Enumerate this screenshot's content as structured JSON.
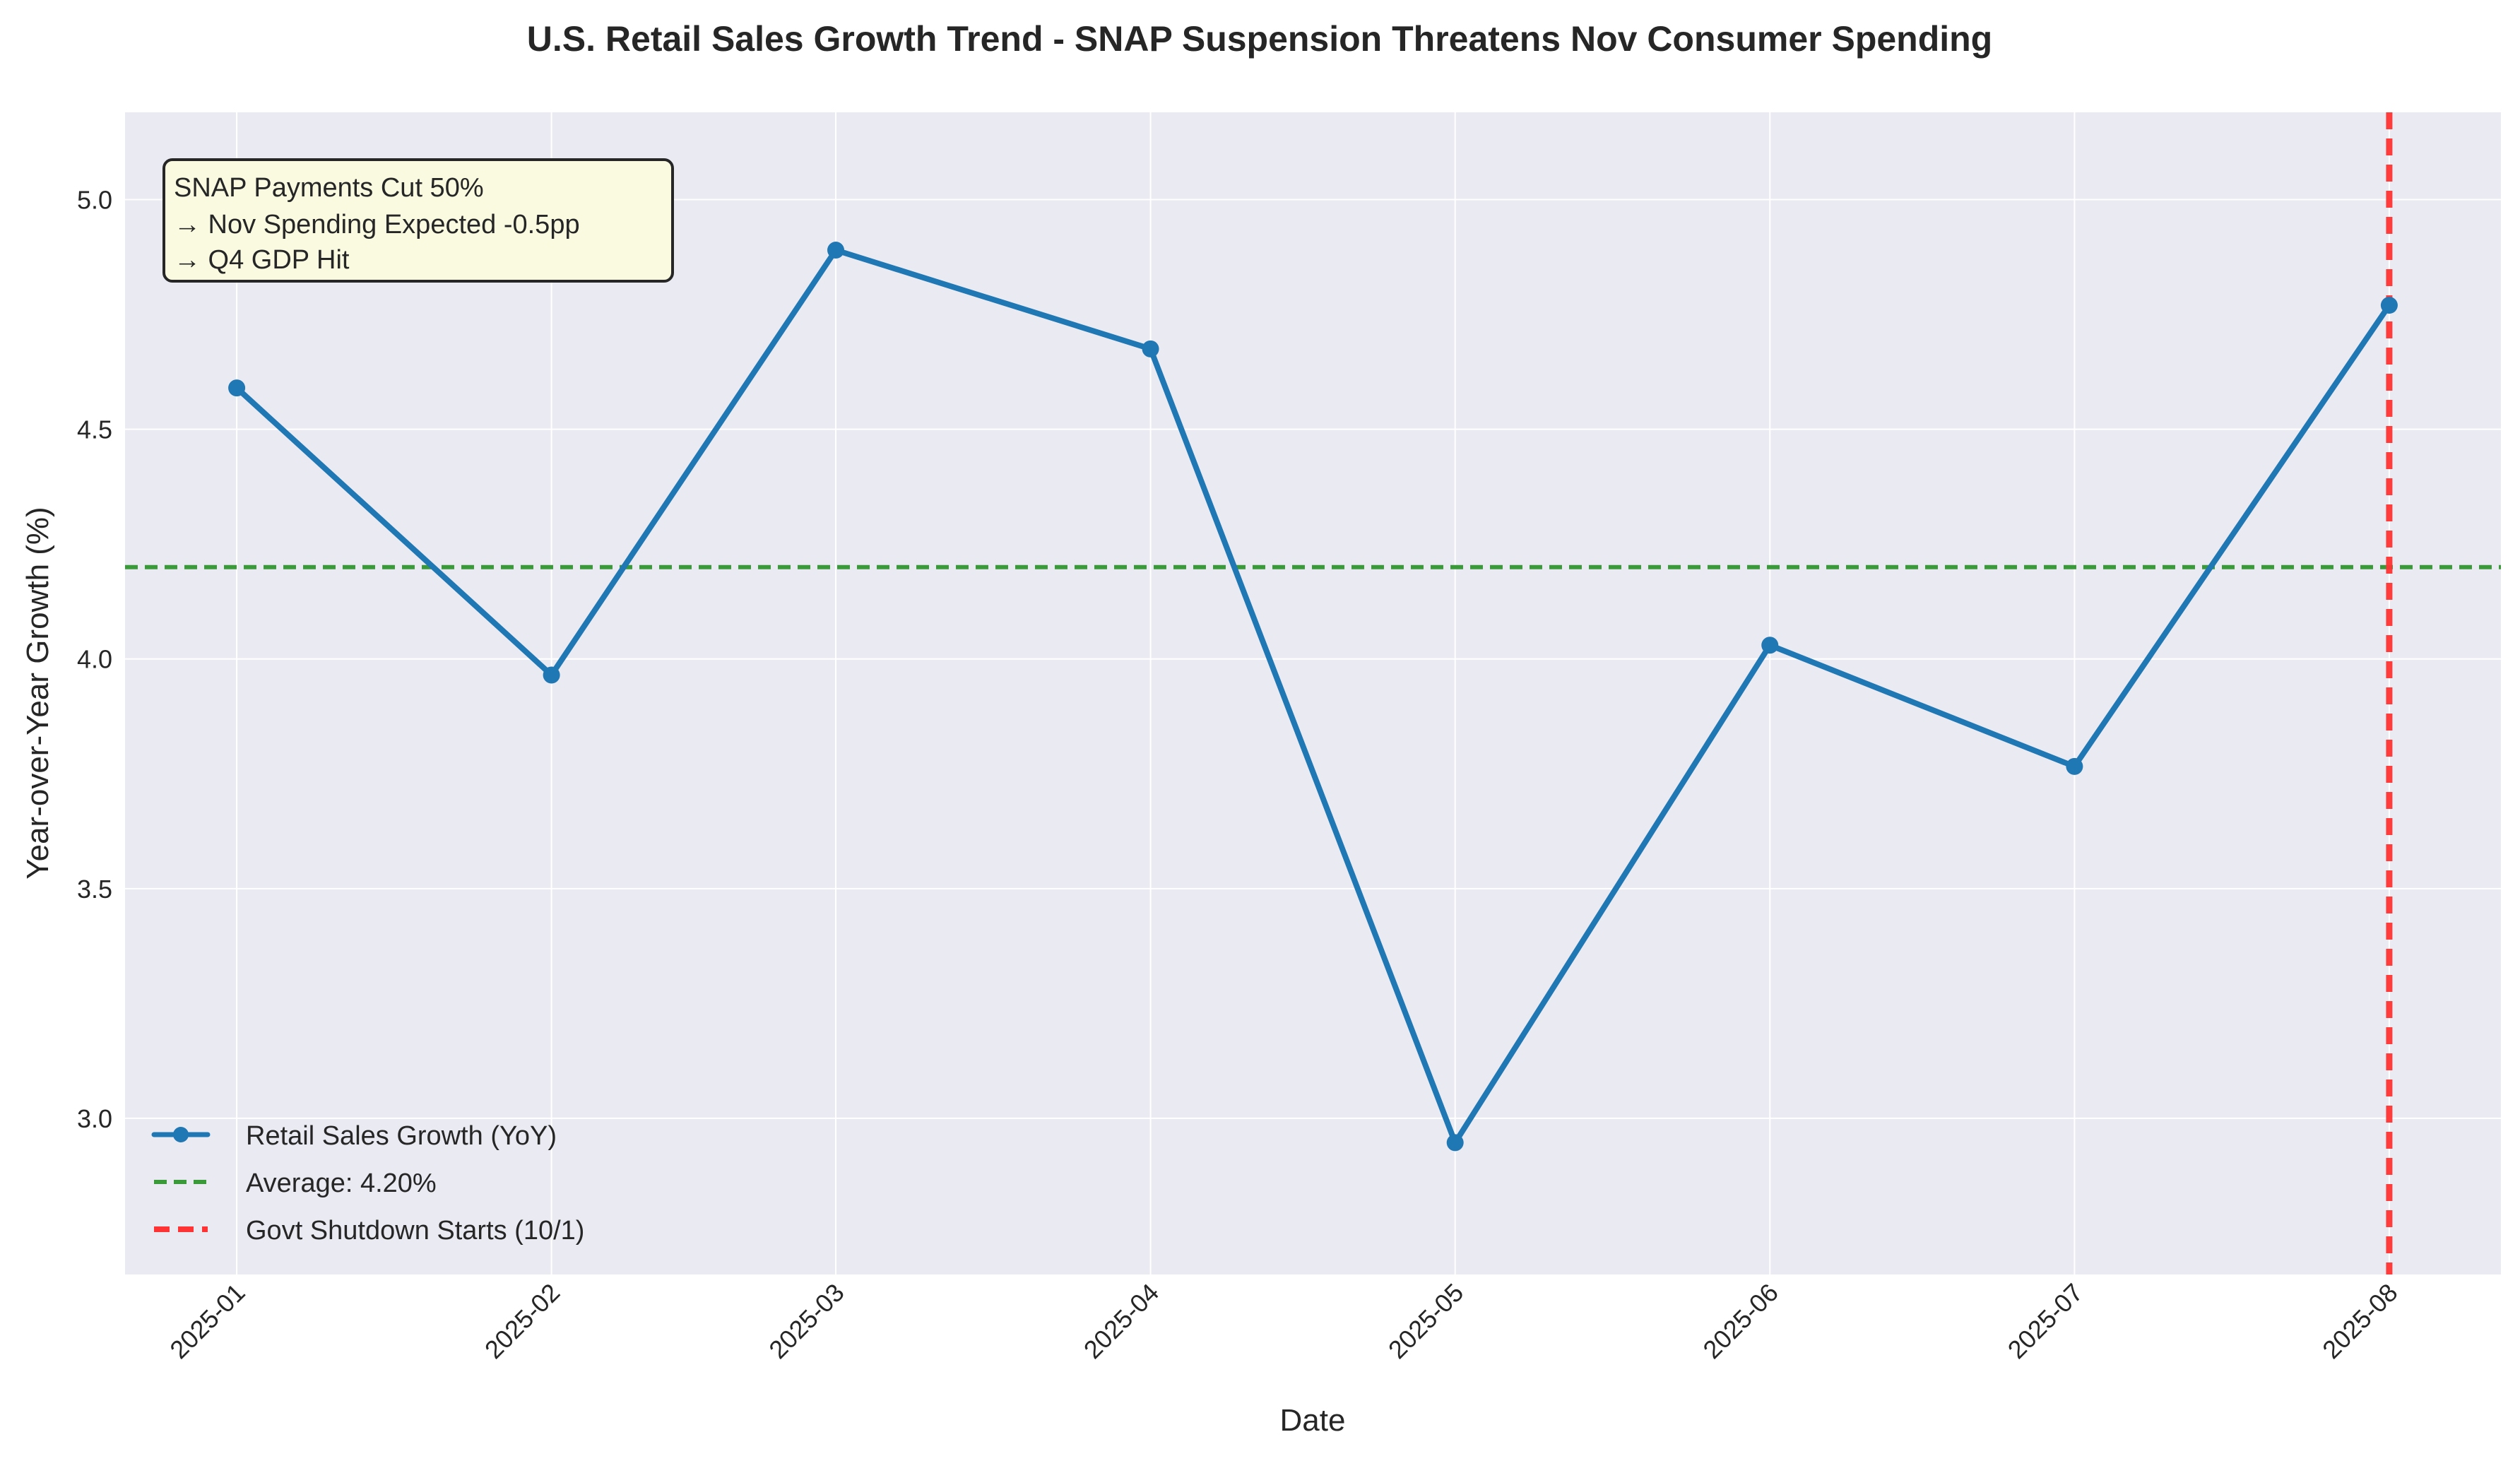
{
  "chart_data": {
    "type": "line",
    "title": "U.S. Retail Sales Growth Trend - SNAP Suspension Threatens Nov Consumer Spending",
    "xlabel": "Date",
    "ylabel": "Year-over-Year Growth (%)",
    "x": [
      "2025-01-01",
      "2025-02-01",
      "2025-03-01",
      "2025-04-01",
      "2025-05-01",
      "2025-06-01",
      "2025-07-01",
      "2025-08-01"
    ],
    "xticks": [
      "2025-01",
      "2025-02",
      "2025-03",
      "2025-04",
      "2025-05",
      "2025-06",
      "2025-07",
      "2025-08"
    ],
    "yticks": [
      "3.0",
      "3.5",
      "4.0",
      "4.5",
      "5.0"
    ],
    "ylim": [
      2.66,
      5.19
    ],
    "xlim": [
      "2024-12-21",
      "2025-08-12"
    ],
    "grid": true,
    "legend_placement": "lower-left",
    "series": [
      {
        "name": "Retail Sales Growth (YoY)",
        "color": "#1f77b4",
        "marker": "circle",
        "values": [
          4.59,
          3.965,
          4.89,
          4.675,
          2.947,
          4.03,
          3.766,
          4.77
        ]
      }
    ],
    "reference_lines": [
      {
        "orientation": "horizontal",
        "value": 4.2,
        "name": "Average: 4.20%",
        "color": "#3a9a3a",
        "style": "dashed"
      },
      {
        "orientation": "vertical",
        "value": "2025-08-01",
        "name": "Govt Shutdown Starts (10/1)",
        "color": "#ff3333",
        "style": "dashed"
      }
    ],
    "annotation": {
      "lines": [
        "SNAP Payments Cut 50%",
        "→ Nov Spending Expected -0.5pp",
        "→ Q4 GDP Hit"
      ],
      "background": "#fafae1",
      "placement": "top-left"
    },
    "colors": {
      "plot_background": "#eaeaf2",
      "grid": "#ffffff"
    }
  }
}
